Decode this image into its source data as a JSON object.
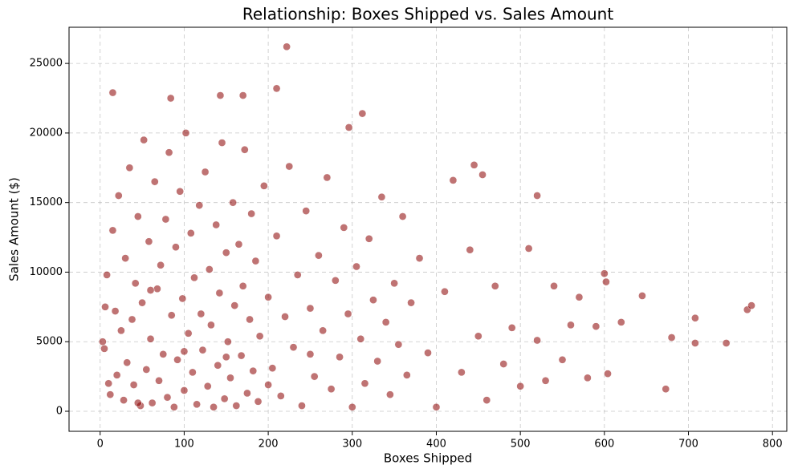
{
  "chart_data": {
    "type": "scatter",
    "title": "Relationship: Boxes Shipped vs. Sales Amount",
    "xlabel": "Boxes Shipped",
    "ylabel": "Sales Amount ($)",
    "color": "#8b0000",
    "grid": true,
    "xlim": [
      -37,
      817
    ],
    "ylim": [
      -1440,
      27600
    ],
    "xticks": [
      0,
      100,
      200,
      300,
      400,
      500,
      600,
      700,
      800
    ],
    "yticks": [
      0,
      5000,
      10000,
      15000,
      20000,
      25000
    ],
    "x": [
      5,
      8,
      12,
      15,
      18,
      20,
      22,
      25,
      28,
      30,
      32,
      35,
      38,
      40,
      42,
      45,
      48,
      50,
      52,
      55,
      58,
      60,
      62,
      65,
      68,
      70,
      72,
      75,
      78,
      80,
      82,
      85,
      88,
      90,
      92,
      95,
      98,
      100,
      102,
      105,
      108,
      110,
      112,
      115,
      118,
      120,
      122,
      125,
      128,
      130,
      132,
      135,
      138,
      140,
      142,
      145,
      148,
      150,
      152,
      155,
      158,
      160,
      162,
      165,
      168,
      170,
      172,
      175,
      178,
      180,
      182,
      185,
      188,
      190,
      195,
      200,
      205,
      210,
      215,
      220,
      225,
      230,
      235,
      240,
      245,
      250,
      255,
      260,
      265,
      270,
      275,
      280,
      285,
      290,
      295,
      300,
      305,
      310,
      315,
      320,
      325,
      330,
      335,
      340,
      345,
      350,
      355,
      360,
      365,
      370,
      380,
      390,
      400,
      410,
      420,
      430,
      440,
      450,
      460,
      470,
      480,
      490,
      500,
      510,
      520,
      530,
      540,
      550,
      560,
      570,
      580,
      590,
      600,
      602,
      604,
      620,
      645,
      673,
      680,
      708,
      708,
      745,
      770,
      775,
      15,
      210,
      222,
      84,
      143,
      170,
      312,
      296,
      520,
      455,
      445,
      3,
      6,
      10,
      45,
      60,
      100,
      150,
      200,
      250
    ],
    "values": [
      4500,
      9800,
      1200,
      13000,
      7200,
      2600,
      15500,
      5800,
      800,
      11000,
      3500,
      17500,
      6600,
      1900,
      9200,
      14000,
      400,
      7800,
      19500,
      3000,
      12200,
      5200,
      600,
      16500,
      8800,
      2200,
      10500,
      4100,
      13800,
      1000,
      18600,
      6900,
      300,
      11800,
      3700,
      15800,
      8100,
      1500,
      20000,
      5600,
      12800,
      2800,
      9600,
      500,
      14800,
      7000,
      4400,
      17200,
      1800,
      10200,
      6200,
      300,
      13400,
      3300,
      8500,
      19300,
      900,
      11400,
      5000,
      2400,
      15000,
      7600,
      400,
      12000,
      4000,
      9000,
      18800,
      1300,
      6600,
      14200,
      2900,
      10800,
      700,
      5400,
      16200,
      8200,
      3100,
      12600,
      1100,
      6800,
      17600,
      4600,
      9800,
      400,
      14400,
      7400,
      2500,
      11200,
      5800,
      16800,
      1600,
      9400,
      3900,
      13200,
      7000,
      300,
      10400,
      5200,
      2000,
      12400,
      8000,
      3600,
      15400,
      6400,
      1200,
      9200,
      4800,
      14000,
      2600,
      7800,
      11000,
      4200,
      300,
      8600,
      16600,
      2800,
      11600,
      5400,
      800,
      9000,
      3400,
      6000,
      1800,
      11700,
      5100,
      2200,
      9000,
      3700,
      6200,
      8200,
      2400,
      6100,
      9900,
      9300,
      2700,
      6400,
      8300,
      1600,
      5300,
      4900,
      6700,
      4900,
      7300,
      7600,
      22900,
      23200,
      26200,
      22500,
      22700,
      22700,
      21400,
      20400,
      15500,
      17000,
      17700,
      5000,
      7500,
      2000,
      600,
      8700,
      4300,
      3900,
      1900,
      4100
    ]
  }
}
